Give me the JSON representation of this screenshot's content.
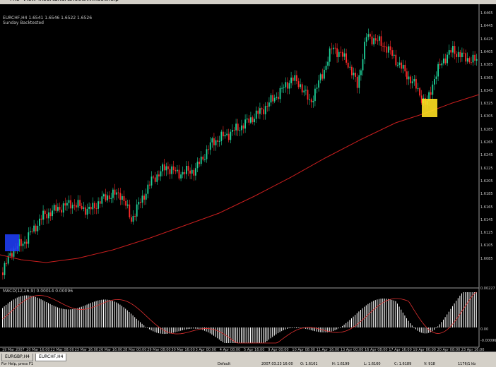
{
  "menu": {
    "items": [
      "File",
      "View",
      "Insert",
      "Charts",
      "Tools",
      "Window",
      "Help"
    ]
  },
  "chart": {
    "symbol_line": "EURCHF,H4  1.6541 1.6546 1.6522 1.6526",
    "subtitle": "Sunday Backtested",
    "macd_label": "MACD(12,26,9) 0.00014 0.00096"
  },
  "axis": {
    "price_labels": [
      "1.6465",
      "1.6445",
      "1.6425",
      "1.6405",
      "1.6385",
      "1.6365",
      "1.6345",
      "1.6325",
      "1.6305",
      "1.6285",
      "1.6265",
      "1.6245",
      "1.6225",
      "1.6205",
      "1.6185",
      "1.6165",
      "1.6145",
      "1.6125",
      "1.6105",
      "1.6085"
    ],
    "macd_labels": [
      "0.00227",
      "0.00",
      "-0.00096"
    ],
    "time_labels": [
      "19 Mar 2007",
      "20 Mar 16:00",
      "22 Mar 08:00",
      "23 Mar 16:00",
      "26 Mar 16:00",
      "28 Mar 00:00",
      "29 Mar 08:00",
      "30 Mar 16:00",
      "3 Apr 00:00",
      "4 Apr 08:00",
      "5 Apr 16:00",
      "9 Apr 00:00",
      "10 Apr 08:00",
      "11 Apr 16:00",
      "13 Apr 00:00",
      "16 Apr 08:00",
      "17 Apr 16:00",
      "19 Apr 00:00",
      "20 Apr 08:00",
      "23 Apr 16:00"
    ]
  },
  "tabs": [
    {
      "label": "EURGBP,H4",
      "active": false
    },
    {
      "label": "EURCHF,H4",
      "active": true
    }
  ],
  "status": {
    "help": "For Help, press F1",
    "profile": "Default",
    "datetime": "2007.03.23 16:00",
    "open": "O: 1.6161",
    "high": "H: 1.6199",
    "low": "L: 1.6160",
    "close": "C: 1.6189",
    "volume": "V: 918",
    "traffic": "1176/1 kb"
  },
  "colors": {
    "bull": "#1fd39a",
    "bear": "#ff2a2a",
    "ma": "#c81e1e",
    "macd_hist": "#ffffff",
    "signal": "#e03030",
    "highlight_blue": "#2040ff",
    "highlight_yellow": "#ffe020"
  }
}
